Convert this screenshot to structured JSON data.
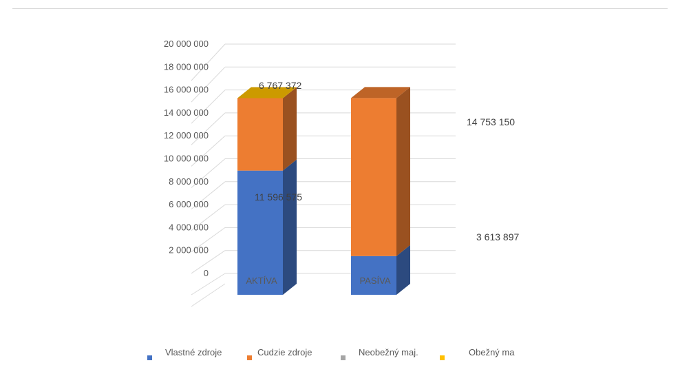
{
  "chart_data": {
    "type": "bar",
    "stacked": true,
    "three_d": true,
    "title": "",
    "xlabel": "",
    "ylabel": "",
    "categories": [
      "AKTÍVA",
      "PASÍVA"
    ],
    "ylim": [
      0,
      20000000
    ],
    "yticks": [
      "20 000 000",
      "18 000 000",
      "16 000 000",
      "14 000 000",
      "12 000 000",
      "10 000 000",
      "8 000 000",
      "6 000 000",
      "4 000 000",
      "2 000 000",
      "0"
    ],
    "grid": true,
    "legend_position": "bottom",
    "series": [
      {
        "name": "Vlastné zdroje",
        "values": [
          11596575,
          3613897
        ],
        "labels": [
          "11 596 575",
          "3 613 897"
        ],
        "color": "#4472c4"
      },
      {
        "name": "Cudzie zdroje",
        "values": [
          6767372,
          14753150
        ],
        "labels": [
          "6 767 372",
          "14 753 150"
        ],
        "color": "#ed7d31"
      },
      {
        "name": "Neobežný maj.",
        "values": [
          0,
          0
        ],
        "labels": [
          "",
          ""
        ],
        "color": "#a5a5a5"
      },
      {
        "name": "Obežný ma",
        "values": [
          0,
          0
        ],
        "labels": [
          "",
          ""
        ],
        "color": "#ffc000"
      }
    ]
  }
}
